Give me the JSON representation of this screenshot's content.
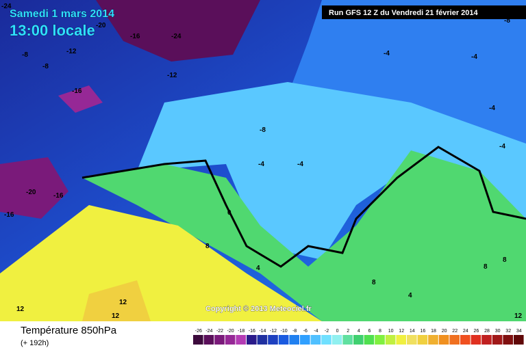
{
  "header": {
    "date": "Samedi 1 mars 2014",
    "time": "13:00 locale",
    "run": "Run GFS 12 Z du Vendredi 21 février 2014"
  },
  "copyright": "Copyright © 2013 Meteociel.fr",
  "footer": {
    "title": "Température 850hPa",
    "subtitle": "(+ 192h)"
  },
  "contour_labels": [
    -24,
    -20,
    -16,
    -24,
    -12,
    -8,
    -8,
    -12,
    -16,
    -8,
    -4,
    -4,
    -4,
    -4,
    -4,
    -4,
    -20,
    -16,
    -16,
    0,
    8,
    4,
    12,
    12,
    12,
    8,
    4,
    8,
    8,
    12,
    -8
  ],
  "scale": {
    "labels": [
      -26,
      -24,
      -22,
      -20,
      -18,
      -16,
      -14,
      -12,
      -10,
      -8,
      -6,
      -4,
      -2,
      0,
      2,
      4,
      6,
      8,
      10,
      12,
      14,
      16,
      18,
      20,
      22,
      24,
      26,
      28,
      30,
      32,
      34
    ],
    "colors": [
      "#3c0a3c",
      "#5a0f5a",
      "#7a1a7a",
      "#962896",
      "#b43cb4",
      "#2a1a8a",
      "#2030a0",
      "#1e40c0",
      "#1a5ae0",
      "#2080f0",
      "#30a0ff",
      "#50c0ff",
      "#70e0ff",
      "#90f0f0",
      "#60e0a0",
      "#40d070",
      "#50e050",
      "#80f040",
      "#c0f040",
      "#f0f040",
      "#f0e060",
      "#f0d040",
      "#f0b030",
      "#f09020",
      "#f07020",
      "#f05020",
      "#e03020",
      "#c02020",
      "#a01818",
      "#801010",
      "#600808"
    ]
  }
}
